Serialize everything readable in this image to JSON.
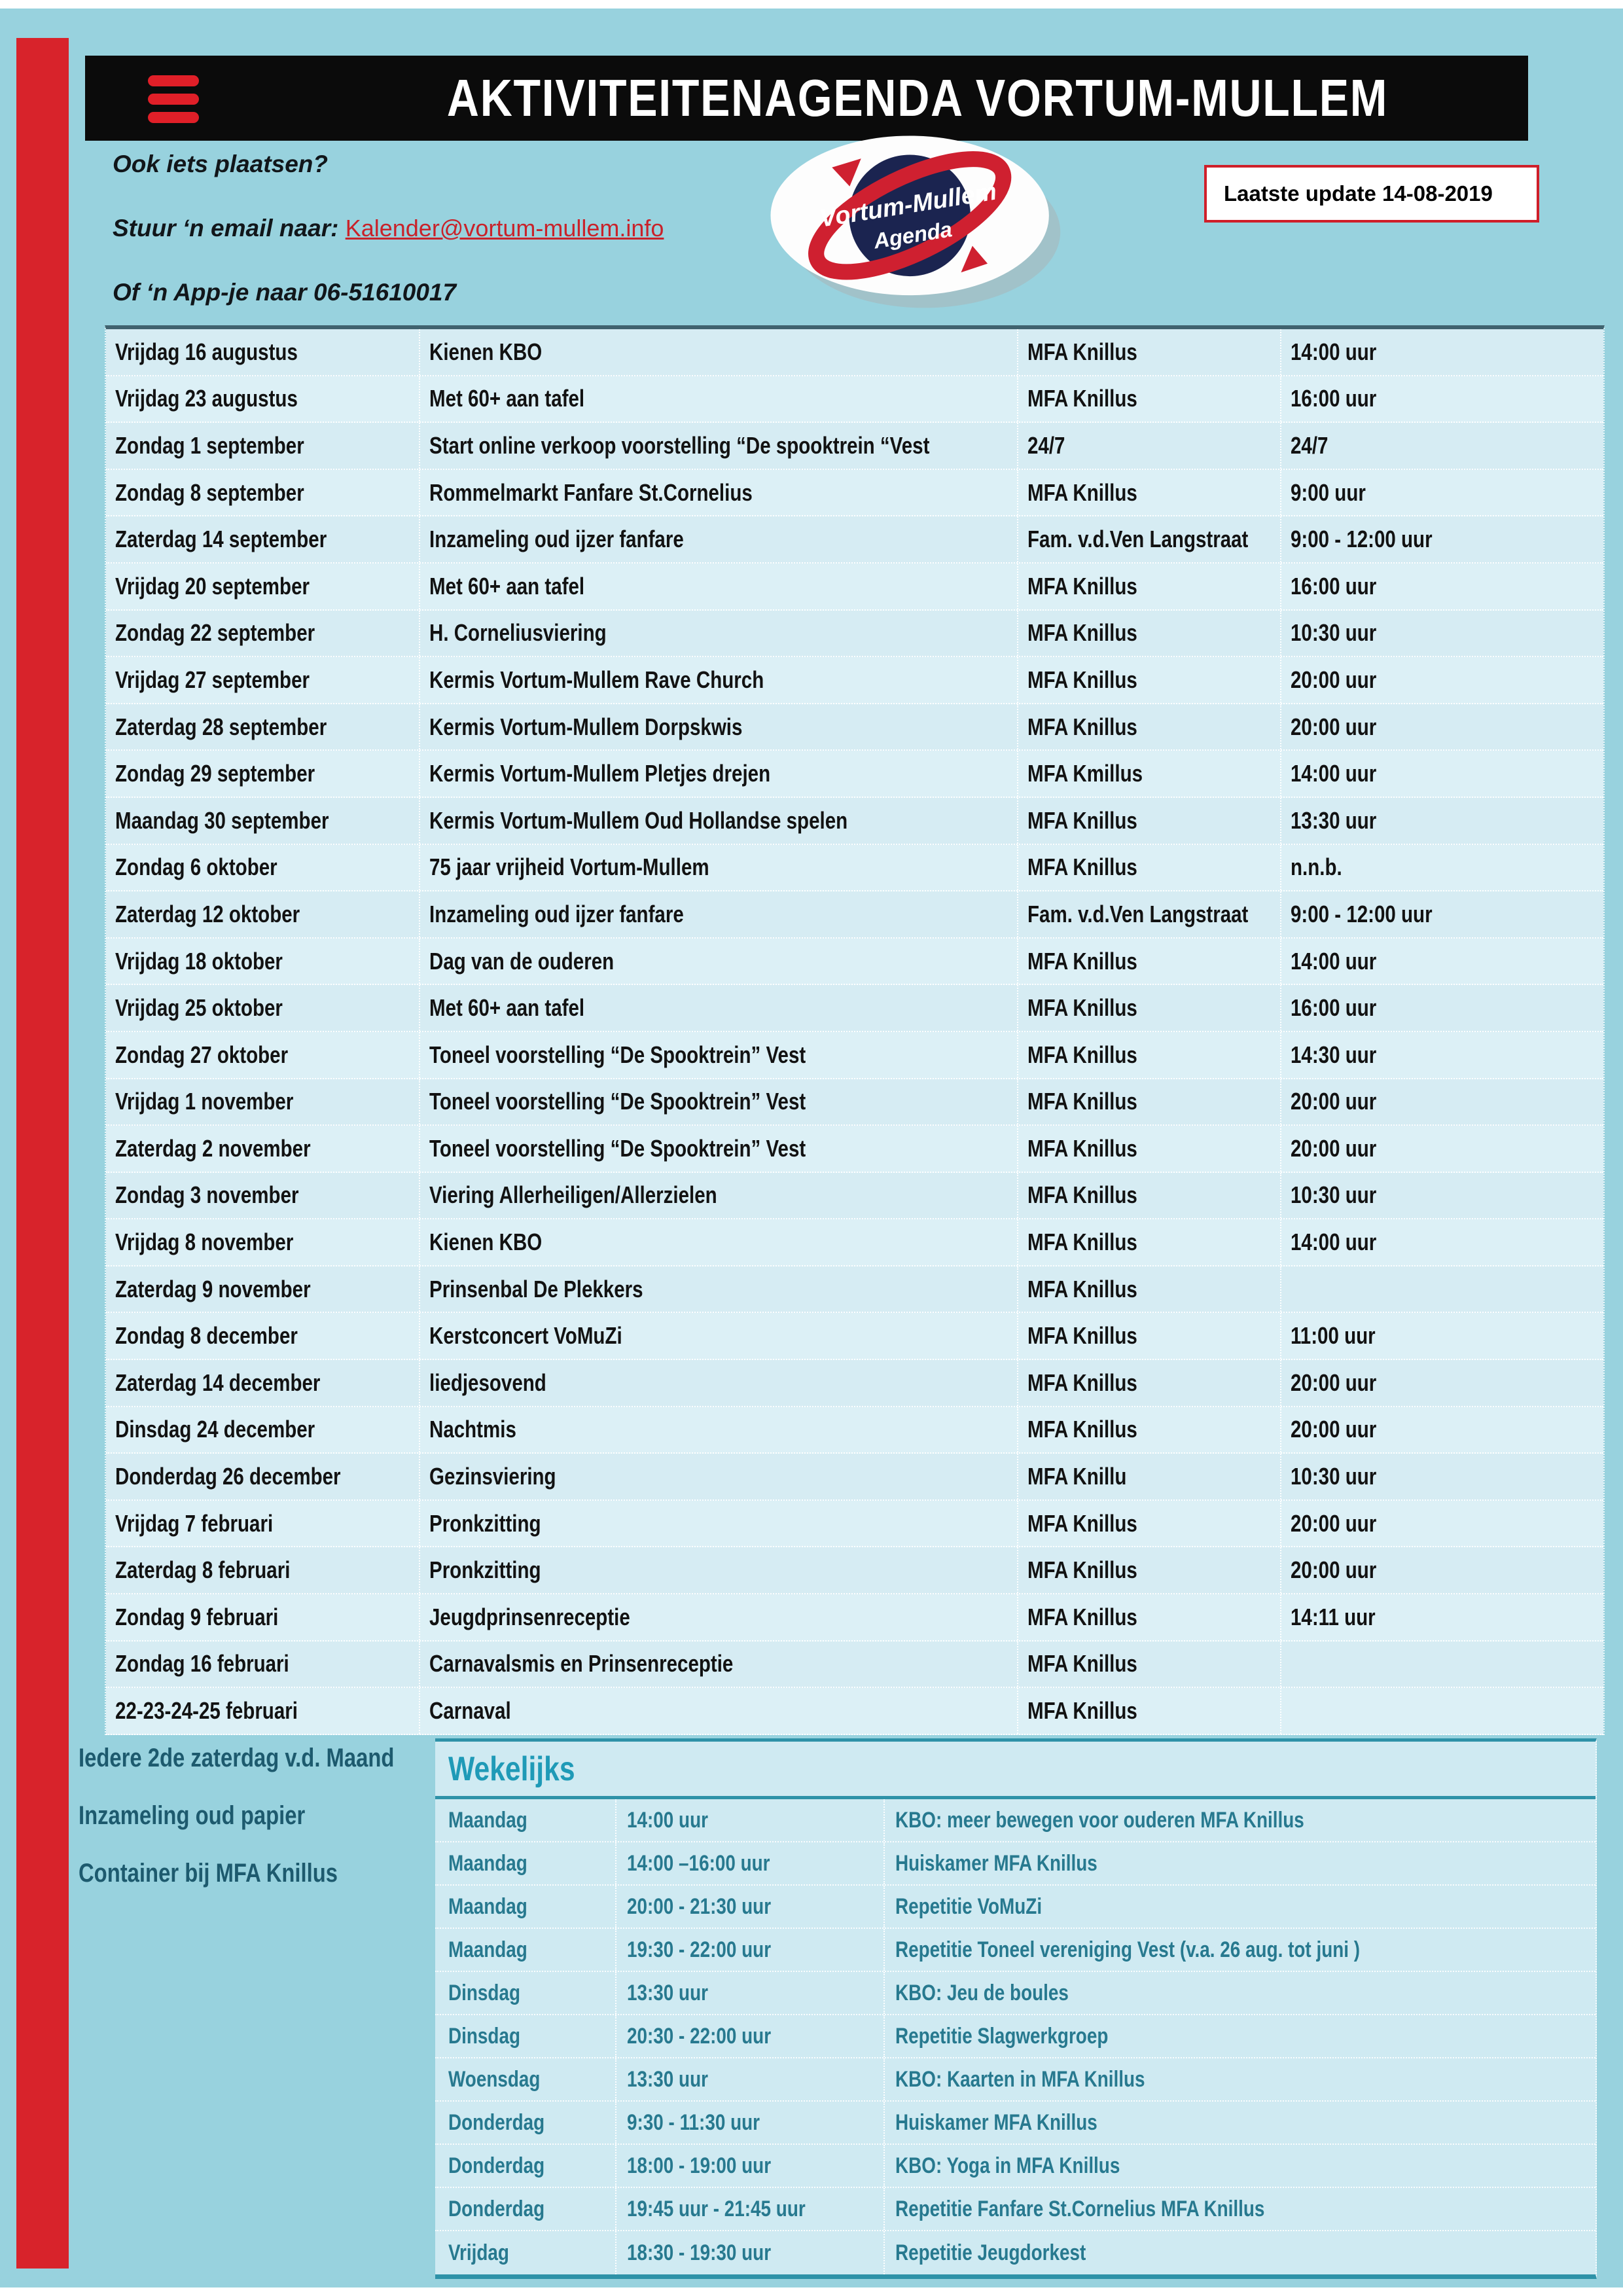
{
  "colors": {
    "page_background": "#98d2de",
    "stripe_red": "#d8232b",
    "title_bar_black": "#0b0b0b",
    "hamburger_red": "#e01f28",
    "link_red": "#c9222a",
    "update_border_red": "#cf1f2a",
    "table_row_light": "#dcf0f6",
    "table_row_dark": "#d6ecf3",
    "table_top_border": "#40636f",
    "weekly_background": "#cfeaf2",
    "weekly_border_teal": "#2e92a8",
    "weekly_title_teal": "#1f9ab7",
    "weekly_text_teal": "#27798f",
    "note_text_teal": "#1d5a6e",
    "logo_navy": "#1b2450",
    "logo_red": "#cf2030"
  },
  "header": {
    "title": "AKTIVITEITENAGENDA VORTUM-MULLEM",
    "menu_icon": "hamburger-menu"
  },
  "contact": {
    "line1": "Ook iets plaatsen?",
    "email_prefix": "Stuur ‘n email naar: ",
    "email": "Kalender@vortum-mullem.info",
    "line3": "Of ‘n App-je naar 06-51610017"
  },
  "logo": {
    "line1": "Vortum-Mullem",
    "line2": "Agenda"
  },
  "update_box": {
    "text": "Laatste update 14-08-2019"
  },
  "agenda": {
    "rows": [
      {
        "date": "Vrijdag 16 augustus",
        "event": "Kienen KBO",
        "location": "MFA Knillus",
        "time": "14:00 uur"
      },
      {
        "date": "Vrijdag 23 augustus",
        "event": "Met 60+ aan tafel",
        "location": "MFA Knillus",
        "time": "16:00 uur"
      },
      {
        "date": "Zondag 1 september",
        "event": "Start online verkoop voorstelling  “De spooktrein “Vest",
        "location": "24/7",
        "time": "24/7"
      },
      {
        "date": "Zondag 8 september",
        "event": "Rommelmarkt Fanfare St.Cornelius",
        "location": "MFA Knillus",
        "time": "9:00 uur"
      },
      {
        "date": "Zaterdag 14 september",
        "event": "Inzameling oud ijzer fanfare",
        "location": "Fam. v.d.Ven Langstraat",
        "time": "9:00 - 12:00 uur"
      },
      {
        "date": "Vrijdag 20 september",
        "event": "Met 60+ aan tafel",
        "location": "MFA Knillus",
        "time": "16:00 uur"
      },
      {
        "date": "Zondag 22 september",
        "event": "H. Corneliusviering",
        "location": "MFA Knillus",
        "time": "10:30 uur"
      },
      {
        "date": "Vrijdag 27 september",
        "event": "Kermis Vortum-Mullem Rave Church",
        "location": "MFA Knillus",
        "time": "20:00 uur"
      },
      {
        "date": "Zaterdag 28 september",
        "event": "Kermis Vortum-Mullem Dorpskwis",
        "location": "MFA Knillus",
        "time": "20:00 uur"
      },
      {
        "date": "Zondag 29 september",
        "event": "Kermis Vortum-Mullem Pletjes drejen",
        "location": "MFA Kmillus",
        "time": "14:00 uur"
      },
      {
        "date": "Maandag 30 september",
        "event": "Kermis Vortum-Mullem Oud Hollandse spelen",
        "location": "MFA Knillus",
        "time": "13:30 uur"
      },
      {
        "date": "Zondag 6 oktober",
        "event": "75 jaar vrijheid Vortum-Mullem",
        "location": "MFA Knillus",
        "time": "n.n.b."
      },
      {
        "date": "Zaterdag 12 oktober",
        "event": "Inzameling oud ijzer fanfare",
        "location": "Fam. v.d.Ven Langstraat",
        "time": "9:00 - 12:00 uur"
      },
      {
        "date": "Vrijdag 18 oktober",
        "event": "Dag van de ouderen",
        "location": "MFA Knillus",
        "time": "14:00 uur"
      },
      {
        "date": "Vrijdag 25 oktober",
        "event": "Met 60+ aan tafel",
        "location": "MFA Knillus",
        "time": "16:00 uur"
      },
      {
        "date": "Zondag 27 oktober",
        "event": "Toneel voorstelling “De Spooktrein”  Vest",
        "location": "MFA Knillus",
        "time": "14:30 uur"
      },
      {
        "date": "Vrijdag 1 november",
        "event": "Toneel voorstelling “De Spooktrein”  Vest",
        "location": "MFA Knillus",
        "time": "20:00 uur"
      },
      {
        "date": "Zaterdag 2 november",
        "event": "Toneel voorstelling “De Spooktrein”  Vest",
        "location": "MFA Knillus",
        "time": "20:00 uur"
      },
      {
        "date": "Zondag 3 november",
        "event": "Viering Allerheiligen/Allerzielen",
        "location": "MFA Knillus",
        "time": "10:30 uur"
      },
      {
        "date": "Vrijdag 8 november",
        "event": "Kienen KBO",
        "location": "MFA Knillus",
        "time": "14:00 uur"
      },
      {
        "date": "Zaterdag  9 november",
        "event": "Prinsenbal De Plekkers",
        "location": "MFA Knillus",
        "time": ""
      },
      {
        "date": "Zondag 8 december",
        "event": "Kerstconcert VoMuZi",
        "location": "MFA Knillus",
        "time": "11:00 uur"
      },
      {
        "date": "Zaterdag 14 december",
        "event": "liedjesovend",
        "location": "MFA Knillus",
        "time": "20:00 uur"
      },
      {
        "date": "Dinsdag 24 december",
        "event": "Nachtmis",
        "location": "MFA Knillus",
        "time": "20:00 uur"
      },
      {
        "date": "Donderdag 26 december",
        "event": "Gezinsviering",
        "location": "MFA Knillu",
        "time": "10:30 uur"
      },
      {
        "date": "Vrijdag 7 februari",
        "event": "Pronkzitting",
        "location": "MFA Knillus",
        "time": "20:00 uur"
      },
      {
        "date": "Zaterdag 8 februari",
        "event": "Pronkzitting",
        "location": "MFA Knillus",
        "time": "20:00 uur"
      },
      {
        "date": "Zondag 9 februari",
        "event": "Jeugdprinsenreceptie",
        "location": "MFA Knillus",
        "time": "14:11 uur"
      },
      {
        "date": "Zondag 16 februari",
        "event": "Carnavalsmis en Prinsenreceptie",
        "location": "MFA Knillus",
        "time": ""
      },
      {
        "date": "22-23-24-25 februari",
        "event": "Carnaval",
        "location": "MFA Knillus",
        "time": ""
      }
    ]
  },
  "monthly_note": {
    "lines": [
      "Iedere 2de  zaterdag  v.d. Maand",
      "Inzameling oud papier",
      "Container bij  MFA Knillus"
    ]
  },
  "weekly": {
    "title": "Wekelijks",
    "rows": [
      {
        "day": "Maandag",
        "time": "14:00 uur",
        "activity": "KBO: meer bewegen voor ouderen MFA Knillus"
      },
      {
        "day": "Maandag",
        "time": "14:00 –16:00 uur",
        "activity": "Huiskamer MFA Knillus"
      },
      {
        "day": "Maandag",
        "time": "20:00 -  21:30 uur",
        "activity": "Repetitie VoMuZi"
      },
      {
        "day": "Maandag",
        "time": "19:30  - 22:00 uur",
        "activity": "Repetitie Toneel vereniging Vest (v.a. 26 aug. tot juni )"
      },
      {
        "day": "Dinsdag",
        "time": "13:30 uur",
        "activity": "KBO: Jeu de boules"
      },
      {
        "day": "Dinsdag",
        "time": "20:30  - 22:00 uur",
        "activity": "Repetitie Slagwerkgroep"
      },
      {
        "day": "Woensdag",
        "time": "13:30 uur",
        "activity": "KBO: Kaarten in MFA Knillus"
      },
      {
        "day": "Donderdag",
        "time": "9:30 - 11:30 uur",
        "activity": "Huiskamer MFA Knillus"
      },
      {
        "day": "Donderdag",
        "time": "18:00 -  19:00 uur",
        "activity": "KBO: Yoga in MFA Knillus"
      },
      {
        "day": "Donderdag",
        "time": "19:45 uur -  21:45 uur",
        "activity": "Repetitie Fanfare St.Cornelius MFA Knillus"
      },
      {
        "day": "Vrijdag",
        "time": "18:30 - 19:30 uur",
        "activity": "Repetitie Jeugdorkest"
      }
    ]
  }
}
